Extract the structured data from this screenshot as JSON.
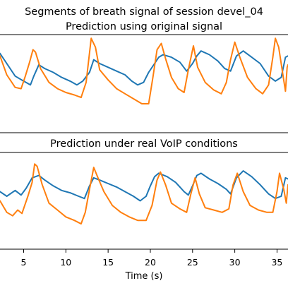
{
  "figure_title": "Segments of breath signal of session devel_04",
  "chart_data": [
    {
      "type": "line",
      "title": "Prediction using original signal",
      "xlabel": "",
      "ylabel": "",
      "xlim": [
        2.2,
        36.3
      ],
      "ylim": [
        -1.7,
        2.2
      ],
      "grid": false,
      "colors": [
        "#1f77b4",
        "#ff7f0e"
      ],
      "series": [
        {
          "color": "#1f77b4",
          "points": [
            [
              2.2,
              1.45
            ],
            [
              3,
              1.05
            ],
            [
              4,
              0.55
            ],
            [
              5,
              0.35
            ],
            [
              5.8,
              0.2
            ],
            [
              6.2,
              0.55
            ],
            [
              6.8,
              1.0
            ],
            [
              7.5,
              0.85
            ],
            [
              8.5,
              0.7
            ],
            [
              9.5,
              0.5
            ],
            [
              10.5,
              0.35
            ],
            [
              11.3,
              0.2
            ],
            [
              12,
              0.35
            ],
            [
              12.8,
              0.7
            ],
            [
              13.3,
              1.2
            ],
            [
              14,
              1.05
            ],
            [
              15,
              0.9
            ],
            [
              16,
              0.75
            ],
            [
              17,
              0.6
            ],
            [
              17.8,
              0.35
            ],
            [
              18.5,
              0.2
            ],
            [
              19.2,
              0.3
            ],
            [
              19.8,
              0.7
            ],
            [
              20.5,
              1.05
            ],
            [
              21,
              1.3
            ],
            [
              21.5,
              1.4
            ],
            [
              22.5,
              1.3
            ],
            [
              23.5,
              1.1
            ],
            [
              24.3,
              0.75
            ],
            [
              25,
              1.05
            ],
            [
              25.5,
              1.35
            ],
            [
              26,
              1.55
            ],
            [
              27,
              1.4
            ],
            [
              28,
              1.15
            ],
            [
              28.8,
              0.85
            ],
            [
              29.5,
              0.75
            ],
            [
              30.2,
              1.35
            ],
            [
              31,
              1.55
            ],
            [
              32,
              1.3
            ],
            [
              33,
              1.05
            ],
            [
              34,
              0.55
            ],
            [
              34.8,
              0.35
            ],
            [
              35.5,
              0.5
            ],
            [
              36,
              1.3
            ],
            [
              36.3,
              1.35
            ]
          ]
        },
        {
          "color": "#ff7f0e",
          "points": [
            [
              2.2,
              1.35
            ],
            [
              3,
              0.6
            ],
            [
              4,
              0.1
            ],
            [
              4.7,
              0.05
            ],
            [
              5.2,
              0.55
            ],
            [
              5.7,
              1.1
            ],
            [
              6.1,
              1.6
            ],
            [
              6.4,
              1.5
            ],
            [
              7,
              0.85
            ],
            [
              8,
              0.3
            ],
            [
              9,
              0.05
            ],
            [
              10,
              -0.1
            ],
            [
              11,
              -0.2
            ],
            [
              11.8,
              -0.3
            ],
            [
              12.4,
              0.3
            ],
            [
              13,
              2.05
            ],
            [
              13.5,
              1.7
            ],
            [
              14,
              0.8
            ],
            [
              15,
              0.4
            ],
            [
              16,
              0.05
            ],
            [
              17,
              -0.15
            ],
            [
              18,
              -0.35
            ],
            [
              19,
              -0.55
            ],
            [
              19.8,
              -0.55
            ],
            [
              20.3,
              0.5
            ],
            [
              20.8,
              1.6
            ],
            [
              21.3,
              1.85
            ],
            [
              21.8,
              1.25
            ],
            [
              22.5,
              0.5
            ],
            [
              23.3,
              0.05
            ],
            [
              24,
              -0.1
            ],
            [
              24.5,
              0.8
            ],
            [
              25.1,
              1.75
            ],
            [
              25.6,
              0.9
            ],
            [
              26.5,
              0.3
            ],
            [
              27.5,
              0.0
            ],
            [
              28.4,
              -0.15
            ],
            [
              29,
              0.3
            ],
            [
              29.5,
              1.2
            ],
            [
              30,
              1.9
            ],
            [
              30.6,
              1.3
            ],
            [
              31.5,
              0.5
            ],
            [
              32.5,
              0.05
            ],
            [
              33.3,
              -0.15
            ],
            [
              34,
              0.2
            ],
            [
              34.5,
              1.3
            ],
            [
              34.8,
              2.05
            ],
            [
              35.2,
              1.7
            ],
            [
              35.7,
              0.6
            ],
            [
              36,
              -0.05
            ],
            [
              36.2,
              0.9
            ],
            [
              36.3,
              1.0
            ]
          ]
        }
      ]
    },
    {
      "type": "line",
      "title": "Prediction under real VoIP conditions",
      "xlabel": "Time (s)",
      "ylabel": "",
      "xlim": [
        2.2,
        36.3
      ],
      "ylim": [
        -2.2,
        2.0
      ],
      "grid": false,
      "xticks": [
        5,
        10,
        15,
        20,
        25,
        30,
        35
      ],
      "xtick_labels": [
        "5",
        "10",
        "15",
        "20",
        "25",
        "30",
        "35"
      ],
      "colors": [
        "#1f77b4",
        "#ff7f0e"
      ],
      "series": [
        {
          "color": "#1f77b4",
          "points": [
            [
              2.2,
              0.3
            ],
            [
              3,
              0.1
            ],
            [
              4,
              0.35
            ],
            [
              4.7,
              0.15
            ],
            [
              5.3,
              0.45
            ],
            [
              6,
              0.9
            ],
            [
              6.8,
              1.0
            ],
            [
              7.5,
              0.8
            ],
            [
              8.5,
              0.55
            ],
            [
              9.5,
              0.35
            ],
            [
              10.5,
              0.25
            ],
            [
              11.5,
              0.1
            ],
            [
              12.2,
              0.0
            ],
            [
              12.8,
              0.55
            ],
            [
              13.3,
              0.9
            ],
            [
              14,
              0.8
            ],
            [
              15,
              0.65
            ],
            [
              16,
              0.5
            ],
            [
              17,
              0.3
            ],
            [
              18,
              0.1
            ],
            [
              18.8,
              -0.1
            ],
            [
              19.5,
              0.1
            ],
            [
              20,
              0.55
            ],
            [
              20.5,
              0.95
            ],
            [
              21,
              1.1
            ],
            [
              22,
              0.95
            ],
            [
              23,
              0.7
            ],
            [
              24,
              0.3
            ],
            [
              24.5,
              0.15
            ],
            [
              25,
              0.55
            ],
            [
              25.5,
              1.0
            ],
            [
              26,
              1.1
            ],
            [
              27,
              0.85
            ],
            [
              28,
              0.65
            ],
            [
              29,
              0.4
            ],
            [
              29.5,
              0.2
            ],
            [
              30.2,
              0.9
            ],
            [
              31,
              1.2
            ],
            [
              32,
              0.95
            ],
            [
              33,
              0.6
            ],
            [
              34,
              0.2
            ],
            [
              34.8,
              0.0
            ],
            [
              35.5,
              0.1
            ],
            [
              36,
              0.9
            ],
            [
              36.3,
              0.85
            ]
          ]
        },
        {
          "color": "#ff7f0e",
          "points": [
            [
              2.2,
              -0.1
            ],
            [
              3,
              -0.6
            ],
            [
              3.7,
              -0.75
            ],
            [
              4.3,
              -0.5
            ],
            [
              4.8,
              -0.65
            ],
            [
              5.5,
              0.1
            ],
            [
              6,
              0.7
            ],
            [
              6.3,
              1.5
            ],
            [
              6.6,
              1.4
            ],
            [
              7.2,
              0.6
            ],
            [
              8,
              -0.2
            ],
            [
              9,
              -0.5
            ],
            [
              10,
              -0.8
            ],
            [
              11,
              -0.95
            ],
            [
              11.8,
              -1.1
            ],
            [
              12.3,
              -0.6
            ],
            [
              12.8,
              0.4
            ],
            [
              13.3,
              1.35
            ],
            [
              13.8,
              0.9
            ],
            [
              14.5,
              0.3
            ],
            [
              15.5,
              -0.3
            ],
            [
              16.5,
              -0.6
            ],
            [
              17.5,
              -0.8
            ],
            [
              18.5,
              -0.95
            ],
            [
              19.5,
              -0.95
            ],
            [
              20.2,
              -0.3
            ],
            [
              20.8,
              0.8
            ],
            [
              21.2,
              1.15
            ],
            [
              21.8,
              0.6
            ],
            [
              22.5,
              -0.2
            ],
            [
              23.5,
              -0.45
            ],
            [
              24.3,
              -0.6
            ],
            [
              24.8,
              0.2
            ],
            [
              25.3,
              0.9
            ],
            [
              25.8,
              0.2
            ],
            [
              26.5,
              -0.4
            ],
            [
              27.5,
              -0.5
            ],
            [
              28.5,
              -0.6
            ],
            [
              29.3,
              -0.45
            ],
            [
              29.8,
              0.6
            ],
            [
              30.3,
              1.1
            ],
            [
              31,
              0.3
            ],
            [
              31.8,
              -0.3
            ],
            [
              32.8,
              -0.5
            ],
            [
              33.8,
              -0.6
            ],
            [
              34.5,
              -0.6
            ],
            [
              35,
              0.3
            ],
            [
              35.3,
              1.1
            ],
            [
              35.8,
              0.4
            ],
            [
              36.1,
              -0.2
            ],
            [
              36.3,
              0.6
            ]
          ]
        }
      ]
    }
  ]
}
